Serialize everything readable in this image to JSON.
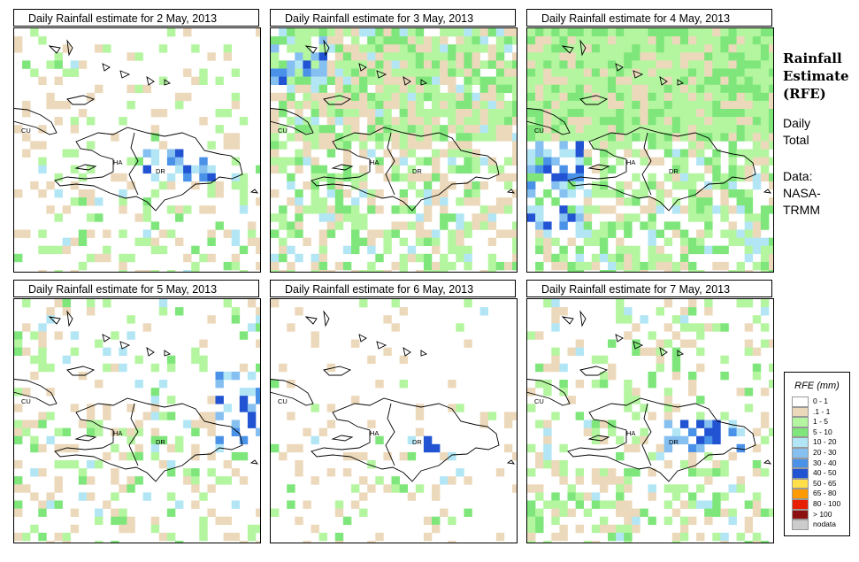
{
  "panels": [
    {
      "title": "Daily Rainfall estimate for  2 May, 2013"
    },
    {
      "title": "Daily Rainfall estimate for  3 May, 2013"
    },
    {
      "title": "Daily Rainfall estimate for  4 May, 2013"
    },
    {
      "title": "Daily Rainfall estimate for  5 May, 2013"
    },
    {
      "title": "Daily Rainfall estimate for  6 May, 2013"
    },
    {
      "title": "Daily Rainfall estimate for  7 May, 2013"
    }
  ],
  "country_labels": {
    "cuba": "CU",
    "haiti": "HA",
    "dominican_republic": "DR"
  },
  "side": {
    "title_line1": "Rainfall",
    "title_line2": "Estimate",
    "title_line3": "(RFE)",
    "daily": "Daily",
    "total": "Total",
    "data": "Data:",
    "source1": "NASA-",
    "source2": "TRMM"
  },
  "legend": {
    "title": "RFE (mm)",
    "items": [
      {
        "label": "0 - 1",
        "color": "#ffffff"
      },
      {
        "label": ".1 - 1",
        "color": "#ecd9bb"
      },
      {
        "label": "1 - 5",
        "color": "#b4f5a0"
      },
      {
        "label": "5 - 10",
        "color": "#7ee67a"
      },
      {
        "label": "10 - 20",
        "color": "#b2e6f5"
      },
      {
        "label": "20 - 30",
        "color": "#86c0f0"
      },
      {
        "label": "30 - 40",
        "color": "#4a91e8"
      },
      {
        "label": "40 - 50",
        "color": "#2153d2"
      },
      {
        "label": "50 - 65",
        "color": "#ffe04a"
      },
      {
        "label": "65 - 80",
        "color": "#ff9a00"
      },
      {
        "label": "80 - 100",
        "color": "#e62000"
      },
      {
        "label": "> 100",
        "color": "#8c1010"
      },
      {
        "label": "nodata",
        "color": "#cccccc"
      }
    ]
  }
}
